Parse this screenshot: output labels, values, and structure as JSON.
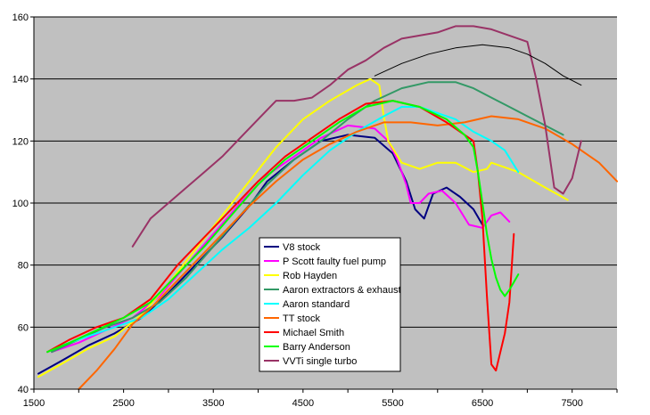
{
  "chart_data": {
    "type": "line",
    "title": "",
    "xlabel": "",
    "ylabel": "",
    "xlim": [
      1500,
      8000
    ],
    "ylim": [
      40,
      160
    ],
    "xticks": [
      1500,
      2500,
      3500,
      4500,
      5500,
      6500,
      7500
    ],
    "xtick_labels": [
      "1500",
      "2500",
      "3500",
      "4500",
      "5500",
      "6500",
      "7500"
    ],
    "yticks": [
      40,
      60,
      80,
      100,
      120,
      140,
      160
    ],
    "ytick_labels": [
      "40",
      "60",
      "80",
      "100",
      "120",
      "140",
      "160"
    ],
    "grid": "horizontal",
    "plot_background": "#c0c0c0",
    "legend_placement": "center-bottom",
    "series": [
      {
        "name": "V8 stock",
        "color": "#000080",
        "x": [
          1550,
          1800,
          2100,
          2400,
          2700,
          3000,
          3300,
          3600,
          3900,
          4100,
          4400,
          4700,
          5000,
          5300,
          5500,
          5650,
          5750,
          5850,
          5950,
          6100,
          6250,
          6400,
          6500
        ],
        "y": [
          45,
          49,
          54,
          58,
          63,
          71,
          80,
          89,
          99,
          107,
          114,
          120,
          122,
          121,
          116,
          107,
          98,
          95,
          103,
          105,
          102,
          98,
          93
        ]
      },
      {
        "name": "P Scott faulty fuel pump",
        "color": "#ff00ff",
        "x": [
          1700,
          2000,
          2300,
          2600,
          2900,
          3200,
          3500,
          3800,
          4100,
          4400,
          4700,
          5000,
          5300,
          5450,
          5550,
          5650,
          5700,
          5800,
          5900,
          6050,
          6200,
          6350,
          6500,
          6600,
          6700,
          6800
        ],
        "y": [
          52,
          55,
          59,
          63,
          70,
          80,
          90,
          100,
          109,
          115,
          121,
          125,
          124,
          120,
          114,
          106,
          100,
          100,
          103,
          104,
          100,
          93,
          92,
          96,
          97,
          94
        ]
      },
      {
        "name": "Rob Hayden",
        "color": "#ffff00",
        "x": [
          1550,
          1800,
          2100,
          2400,
          2700,
          3000,
          3300,
          3600,
          3900,
          4200,
          4500,
          4800,
          5100,
          5250,
          5350,
          5400,
          5450,
          5600,
          5800,
          6000,
          6200,
          6400,
          6550,
          6600,
          6700,
          6900,
          7200,
          7450
        ],
        "y": [
          44,
          48,
          53,
          57,
          64,
          74,
          85,
          96,
          107,
          118,
          127,
          133,
          138,
          140,
          138,
          128,
          120,
          113,
          111,
          113,
          113,
          110,
          111,
          113,
          112,
          110,
          105,
          101
        ]
      },
      {
        "name": "Aaron extractors & exhaust",
        "color": "#339966",
        "x": [
          1700,
          2000,
          2300,
          2600,
          2900,
          3200,
          3500,
          3800,
          4100,
          4400,
          4700,
          5000,
          5300,
          5600,
          5900,
          6200,
          6400,
          6600,
          6800,
          7000,
          7200,
          7400
        ],
        "y": [
          52,
          56,
          60,
          63,
          68,
          76,
          86,
          96,
          106,
          114,
          120,
          127,
          133,
          137,
          139,
          139,
          137,
          134,
          131,
          128,
          125,
          122
        ]
      },
      {
        "name": "Aaron standard",
        "color": "#00ffff",
        "x": [
          1800,
          2100,
          2400,
          2700,
          3000,
          3300,
          3600,
          3900,
          4200,
          4500,
          4800,
          5100,
          5400,
          5600,
          5800,
          6000,
          6200,
          6400,
          6600,
          6750,
          6900
        ],
        "y": [
          54,
          57,
          60,
          63,
          69,
          77,
          85,
          92,
          100,
          109,
          117,
          123,
          128,
          131,
          131,
          129,
          127,
          123,
          120,
          117,
          110
        ]
      },
      {
        "name": "TT stock",
        "color": "#ff6600",
        "x": [
          2000,
          2200,
          2400,
          2600,
          2800,
          3000,
          3300,
          3600,
          3900,
          4200,
          4500,
          4800,
          5100,
          5400,
          5700,
          6000,
          6300,
          6600,
          6900,
          7200,
          7500,
          7800,
          8000
        ],
        "y": [
          40,
          46,
          53,
          61,
          66,
          72,
          81,
          90,
          99,
          107,
          114,
          119,
          123,
          126,
          126,
          125,
          126,
          128,
          127,
          124,
          119,
          113,
          107
        ]
      },
      {
        "name": "Michael Smith",
        "color": "#ff0000",
        "x": [
          1650,
          1900,
          2200,
          2500,
          2800,
          3100,
          3400,
          3700,
          4000,
          4300,
          4600,
          4900,
          5200,
          5500,
          5800,
          6100,
          6300,
          6400,
          6450,
          6500,
          6550,
          6600,
          6650,
          6700,
          6750,
          6800,
          6850
        ],
        "y": [
          52,
          56,
          60,
          63,
          69,
          80,
          89,
          98,
          107,
          115,
          121,
          127,
          132,
          133,
          131,
          126,
          122,
          120,
          110,
          95,
          70,
          48,
          46,
          52,
          58,
          68,
          90
        ]
      },
      {
        "name": "Barry Anderson",
        "color": "#00ff00",
        "x": [
          1650,
          1900,
          2200,
          2500,
          2800,
          3100,
          3400,
          3700,
          4000,
          4300,
          4600,
          4900,
          5200,
          5500,
          5800,
          6100,
          6300,
          6400,
          6450,
          6500,
          6550,
          6600,
          6650,
          6700,
          6750,
          6800,
          6900
        ],
        "y": [
          52,
          55,
          59,
          63,
          68,
          77,
          86,
          96,
          106,
          114,
          120,
          126,
          131,
          133,
          131,
          127,
          122,
          118,
          110,
          100,
          90,
          82,
          76,
          72,
          70,
          72,
          77
        ]
      },
      {
        "name": "VVTi single turbo",
        "color": "#993366",
        "x": [
          2600,
          2800,
          3000,
          3200,
          3400,
          3600,
          3800,
          4000,
          4200,
          4400,
          4600,
          4800,
          5000,
          5200,
          5400,
          5600,
          5800,
          6000,
          6200,
          6400,
          6600,
          6800,
          7000,
          7100,
          7200,
          7300,
          7400,
          7500,
          7600
        ],
        "y": [
          86,
          95,
          100,
          105,
          110,
          115,
          121,
          127,
          133,
          133,
          134,
          138,
          143,
          146,
          150,
          153,
          154,
          155,
          157,
          157,
          156,
          154,
          152,
          140,
          125,
          105,
          103,
          108,
          120
        ]
      },
      {
        "name": "",
        "color": "#000000",
        "x": [
          5300,
          5600,
          5900,
          6200,
          6500,
          6800,
          7000,
          7200,
          7400,
          7600
        ],
        "y": [
          141,
          145,
          148,
          150,
          151,
          150,
          148,
          145,
          141,
          138
        ]
      }
    ]
  }
}
